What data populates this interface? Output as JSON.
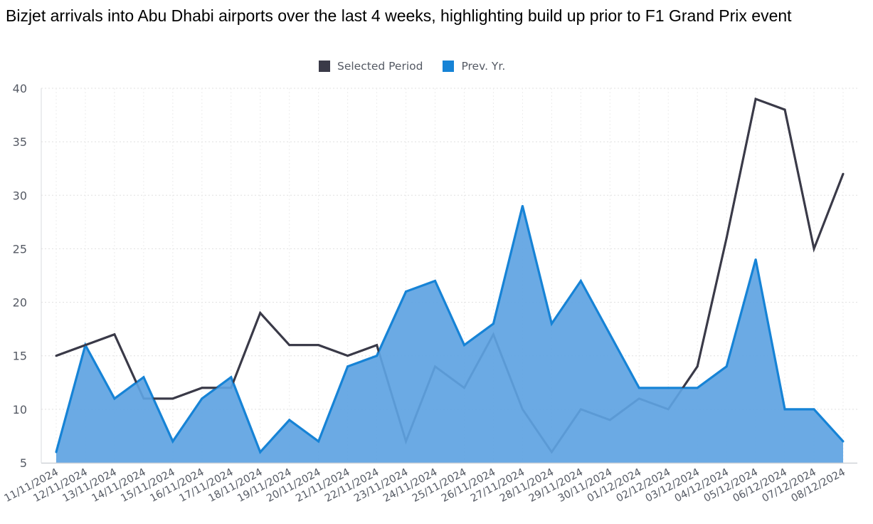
{
  "title": "Bizjet arrivals into Abu Dhabi airports over the last 4 weeks, highlighting build up prior to F1 Grand Prix event",
  "colors": {
    "selected": "#3a3a48",
    "prev": "#1683d6",
    "prev_fill": "#5ea3e2",
    "grid": "#e0e0e0"
  },
  "chart_data": {
    "type": "area",
    "title": "Bizjet arrivals into Abu Dhabi airports over the last 4 weeks, highlighting build up prior to F1 Grand Prix event",
    "xlabel": "",
    "ylabel": "",
    "ylim": [
      5,
      40
    ],
    "yticks": [
      5,
      10,
      15,
      20,
      25,
      30,
      35,
      40
    ],
    "grid": true,
    "legend_position": "top-center",
    "categories": [
      "11/11/2024",
      "12/11/2024",
      "13/11/2024",
      "14/11/2024",
      "15/11/2024",
      "16/11/2024",
      "17/11/2024",
      "18/11/2024",
      "19/11/2024",
      "20/11/2024",
      "21/11/2024",
      "22/11/2024",
      "23/11/2024",
      "24/11/2024",
      "25/11/2024",
      "26/11/2024",
      "27/11/2024",
      "28/11/2024",
      "29/11/2024",
      "30/11/2024",
      "01/12/2024",
      "02/12/2024",
      "03/12/2024",
      "04/12/2024",
      "05/12/2024",
      "06/12/2024",
      "07/12/2024",
      "08/12/2024"
    ],
    "series": [
      {
        "name": "Selected Period",
        "type": "line",
        "values": [
          15,
          16,
          17,
          11,
          11,
          12,
          12,
          19,
          16,
          16,
          15,
          16,
          7,
          14,
          12,
          17,
          10,
          6,
          10,
          9,
          11,
          10,
          14,
          26,
          39,
          38,
          25,
          32
        ]
      },
      {
        "name": "Prev. Yr.",
        "type": "area",
        "values": [
          6,
          16,
          11,
          13,
          7,
          11,
          13,
          6,
          9,
          7,
          14,
          15,
          21,
          22,
          16,
          18,
          29,
          18,
          22,
          17,
          12,
          12,
          12,
          14,
          24,
          10,
          10,
          7
        ]
      }
    ]
  }
}
